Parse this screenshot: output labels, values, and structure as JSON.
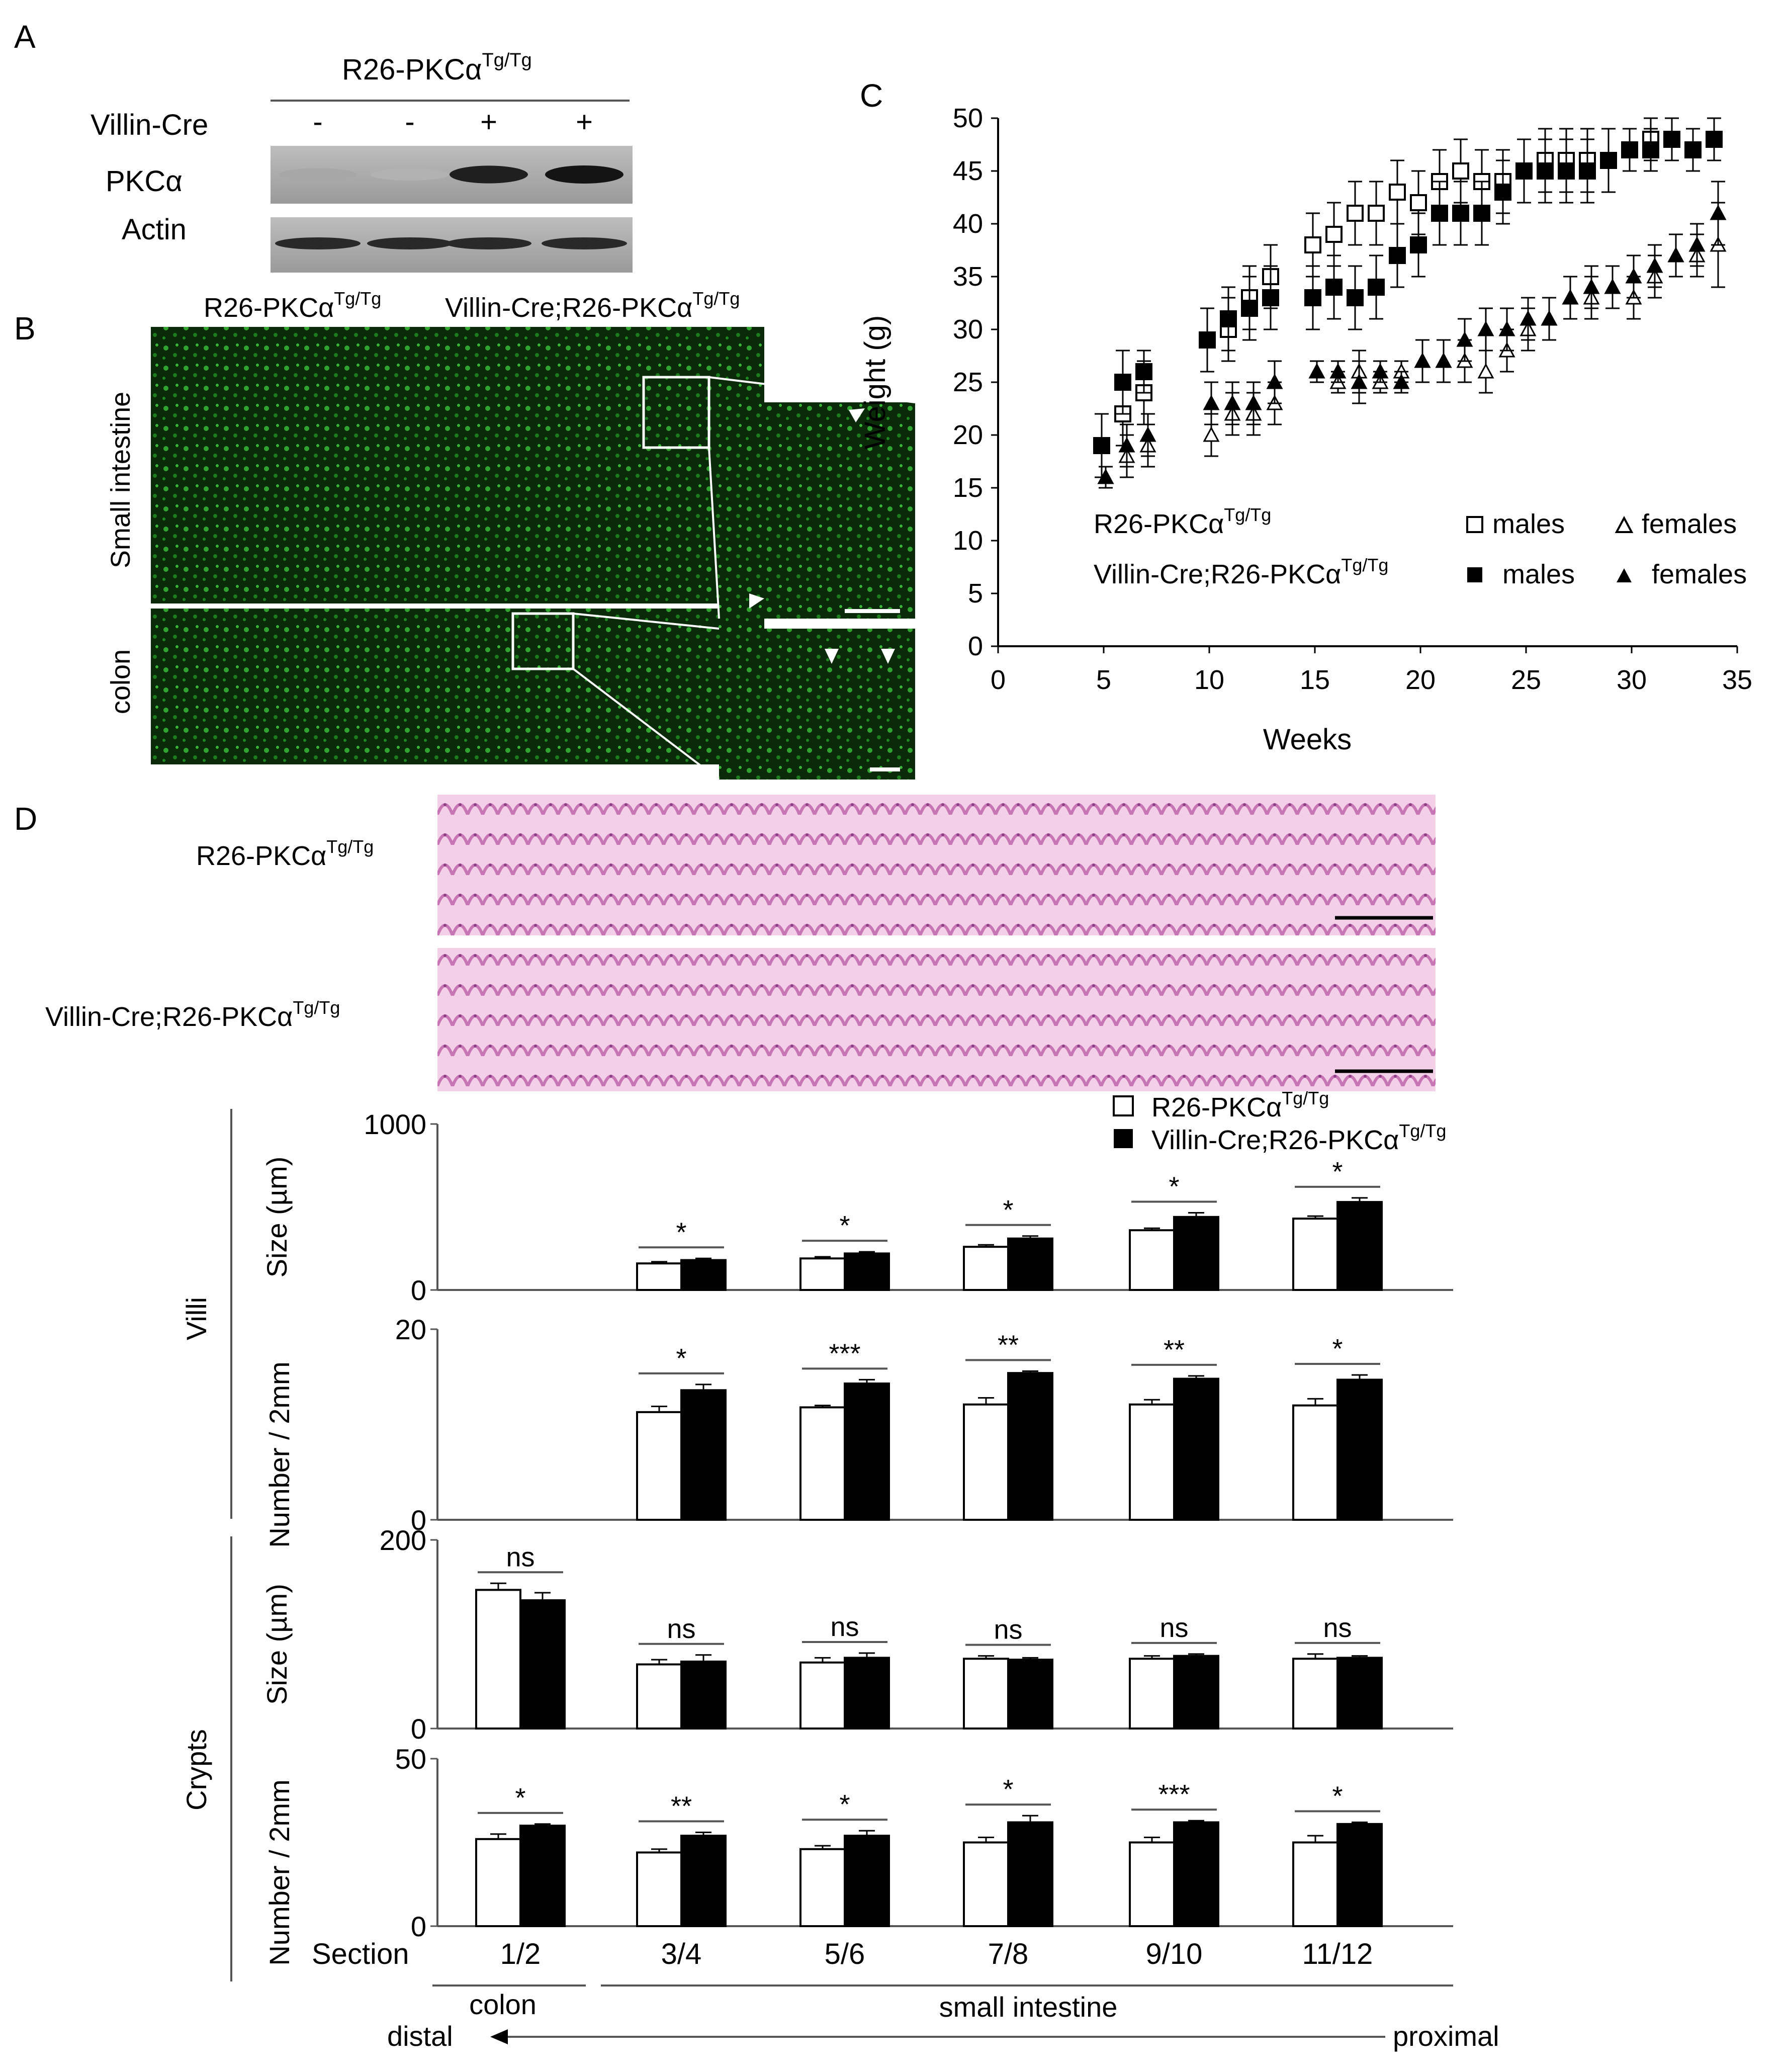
{
  "panel_letters": {
    "a": "A",
    "b": "B",
    "c": "C",
    "d": "D"
  },
  "panel_a": {
    "header": "R26-PKCα",
    "header_sup": "Tg/Tg",
    "row_villin": "Villin-Cre",
    "villin_signs": [
      "-",
      "-",
      "+",
      "+"
    ],
    "row_pkc": "PKCα",
    "row_actin": "Actin",
    "band_intensity_pkc": [
      0.3,
      0.25,
      0.95,
      1.0
    ],
    "band_intensity_actin": [
      0.9,
      0.9,
      0.9,
      0.9
    ]
  },
  "panel_b": {
    "col1": "R26-PKCα",
    "col1_sup": "Tg/Tg",
    "col2": "Villin-Cre;R26-PKCα",
    "col2_sup": "Tg/Tg",
    "row1": "Small intestine",
    "row2": "colon",
    "stain_color": "#1f8a1f"
  },
  "panel_c": {
    "legend_r26": "R26-PKCα",
    "legend_r26_sup": "Tg/Tg",
    "legend_villin": "Villin-Cre;R26-PKCα",
    "legend_villin_sup": "Tg/Tg",
    "males": "males",
    "females": "females"
  },
  "panel_d": {
    "he_row1": "R26-PKCα",
    "he_row1_sup": "Tg/Tg",
    "he_row2": "Villin-Cre;R26-PKCα",
    "he_row2_sup": "Tg/Tg",
    "legend_r26": "R26-PKCα",
    "legend_r26_sup": "Tg/Tg",
    "legend_villin": "Villin-Cre;R26-PKCα",
    "legend_villin_sup": "Tg/Tg",
    "group_villi": "Villi",
    "group_crypts": "Crypts",
    "section_label": "Section",
    "colon": "colon",
    "small_intestine": "small intestine",
    "distal": "distal",
    "proximal": "proximal",
    "he_color": "#d98bc8"
  },
  "chart_data": [
    {
      "type": "scatter",
      "xlabel": "Weeks",
      "ylabel": "Weight (g)",
      "xlim": [
        0,
        35
      ],
      "ylim": [
        0,
        50
      ],
      "xticks": [
        0,
        5,
        10,
        15,
        20,
        25,
        30,
        35
      ],
      "yticks": [
        0,
        5,
        10,
        15,
        20,
        25,
        30,
        35,
        40,
        45,
        50
      ],
      "grid": false,
      "series": [
        {
          "name": "males",
          "marker": "open-square",
          "x": [
            5,
            6,
            7,
            10,
            11,
            12,
            13,
            15,
            16,
            17,
            18,
            19,
            20,
            21,
            22,
            23,
            24,
            25,
            26,
            27,
            28,
            29,
            30,
            31,
            32,
            33,
            34
          ],
          "y": [
            19,
            22,
            24,
            29,
            30,
            33,
            35,
            38,
            39,
            41,
            41,
            43,
            42,
            44,
            45,
            44,
            44,
            45,
            46,
            46,
            46,
            46,
            47,
            48,
            48,
            47,
            48
          ],
          "err": [
            3,
            3,
            3,
            3,
            3,
            3,
            3,
            3,
            3,
            3,
            3,
            3,
            3,
            3,
            3,
            3,
            3,
            3,
            3,
            3,
            3,
            3,
            2,
            2,
            2,
            2,
            2
          ]
        },
        {
          "name": "females",
          "marker": "open-triangle",
          "x": [
            5,
            6,
            7,
            10,
            11,
            12,
            13,
            15,
            16,
            17,
            18,
            19,
            20,
            21,
            22,
            23,
            24,
            25,
            26,
            27,
            28,
            29,
            30,
            31,
            32,
            33,
            34
          ],
          "y": [
            16,
            18,
            19,
            20,
            22,
            22,
            23,
            26,
            25,
            26,
            25,
            26,
            27,
            27,
            27,
            26,
            28,
            30,
            31,
            33,
            33,
            34,
            33,
            35,
            37,
            37,
            38
          ],
          "err": [
            1,
            2,
            2,
            2,
            2,
            2,
            2,
            1,
            1,
            2,
            1,
            1,
            2,
            2,
            2,
            2,
            2,
            2,
            2,
            2,
            2,
            2,
            2,
            2,
            2,
            2,
            4
          ]
        },
        {
          "name": "males",
          "marker": "filled-square",
          "x": [
            5,
            6,
            7,
            10,
            11,
            12,
            13,
            15,
            16,
            17,
            18,
            19,
            20,
            21,
            22,
            23,
            24,
            25,
            26,
            27,
            28,
            29,
            30,
            31,
            32,
            33,
            34
          ],
          "y": [
            19,
            25,
            26,
            29,
            31,
            32,
            33,
            33,
            34,
            33,
            34,
            37,
            38,
            41,
            41,
            41,
            43,
            45,
            45,
            45,
            45,
            46,
            47,
            47,
            48,
            47,
            48
          ],
          "err": [
            3,
            3,
            2,
            3,
            3,
            3,
            3,
            3,
            3,
            3,
            3,
            3,
            3,
            3,
            3,
            3,
            3,
            3,
            3,
            3,
            3,
            3,
            2,
            2,
            2,
            2,
            2
          ]
        },
        {
          "name": "females",
          "marker": "filled-triangle",
          "x": [
            5,
            6,
            7,
            10,
            11,
            12,
            13,
            15,
            16,
            17,
            18,
            19,
            20,
            21,
            22,
            23,
            24,
            25,
            26,
            27,
            28,
            29,
            30,
            31,
            32,
            33,
            34
          ],
          "y": [
            16,
            19,
            20,
            23,
            23,
            23,
            25,
            26,
            26,
            25,
            26,
            25,
            27,
            27,
            29,
            30,
            30,
            31,
            31,
            33,
            34,
            34,
            35,
            36,
            37,
            38,
            41
          ],
          "err": [
            1,
            2,
            2,
            2,
            2,
            2,
            2,
            1,
            1,
            2,
            1,
            1,
            2,
            2,
            2,
            2,
            2,
            2,
            2,
            2,
            2,
            2,
            2,
            2,
            2,
            2,
            3
          ]
        }
      ]
    },
    {
      "type": "bar",
      "categories": [
        "1/2",
        "3/4",
        "5/6",
        "7/8",
        "9/10",
        "11/12"
      ],
      "ylabel": "Size (µm)",
      "ylim": [
        0,
        1000
      ],
      "yticks": [
        0,
        1000
      ],
      "series": [
        {
          "name": "R26-PKCα Tg/Tg",
          "values": [
            0,
            160,
            190,
            260,
            360,
            430
          ],
          "err": [
            0,
            10,
            10,
            12,
            12,
            15
          ]
        },
        {
          "name": "Villin-Cre;R26-PKCα Tg/Tg",
          "values": [
            0,
            180,
            220,
            310,
            440,
            530
          ],
          "err": [
            0,
            10,
            10,
            15,
            25,
            25
          ]
        }
      ],
      "significance": [
        "",
        "*",
        "*",
        "*",
        "*",
        "*"
      ]
    },
    {
      "type": "bar",
      "categories": [
        "1/2",
        "3/4",
        "5/6",
        "7/8",
        "9/10",
        "11/12"
      ],
      "ylabel": "Number / 2mm",
      "ylim": [
        0,
        20
      ],
      "yticks": [
        0,
        20
      ],
      "series": [
        {
          "name": "R26-PKCα Tg/Tg",
          "values": [
            0,
            11.3,
            11.8,
            12.1,
            12.1,
            12.0
          ],
          "err": [
            0,
            0.6,
            0.2,
            0.7,
            0.5,
            0.7
          ]
        },
        {
          "name": "Villin-Cre;R26-PKCα Tg/Tg",
          "values": [
            0,
            13.6,
            14.3,
            15.4,
            14.8,
            14.7
          ],
          "err": [
            0,
            0.6,
            0.4,
            0.2,
            0.3,
            0.5
          ]
        }
      ],
      "significance": [
        "",
        "*",
        "***",
        "**",
        "**",
        "*"
      ]
    },
    {
      "type": "bar",
      "categories": [
        "1/2",
        "3/4",
        "5/6",
        "7/8",
        "9/10",
        "11/12"
      ],
      "ylabel": "Size (µm)",
      "ylim": [
        0,
        200
      ],
      "yticks": [
        0,
        200
      ],
      "series": [
        {
          "name": "R26-PKCα Tg/Tg",
          "values": [
            147,
            68,
            70,
            74,
            74,
            74
          ],
          "err": [
            7,
            5,
            5,
            3,
            3,
            5
          ]
        },
        {
          "name": "Villin-Cre;R26-PKCα Tg/Tg",
          "values": [
            136,
            71,
            75,
            73,
            77,
            75
          ],
          "err": [
            8,
            7,
            5,
            2,
            2,
            2
          ]
        }
      ],
      "significance": [
        "ns",
        "ns",
        "ns",
        "ns",
        "ns",
        "ns"
      ]
    },
    {
      "type": "bar",
      "categories": [
        "1/2",
        "3/4",
        "5/6",
        "7/8",
        "9/10",
        "11/12"
      ],
      "xlabel": "Section",
      "ylabel": "Number / 2mm",
      "ylim": [
        0,
        50
      ],
      "yticks": [
        0,
        50
      ],
      "series": [
        {
          "name": "R26-PKCα Tg/Tg",
          "values": [
            26,
            22,
            23,
            25,
            25,
            25
          ],
          "err": [
            1.5,
            1,
            1,
            1.5,
            1.5,
            2
          ]
        },
        {
          "name": "Villin-Cre;R26-PKCα Tg/Tg",
          "values": [
            30,
            27,
            27,
            31,
            31,
            30.5
          ],
          "err": [
            0.5,
            1,
            1.5,
            2,
            0.5,
            0.5
          ]
        }
      ],
      "significance": [
        "*",
        "**",
        "*",
        "*",
        "***",
        "*"
      ]
    }
  ]
}
